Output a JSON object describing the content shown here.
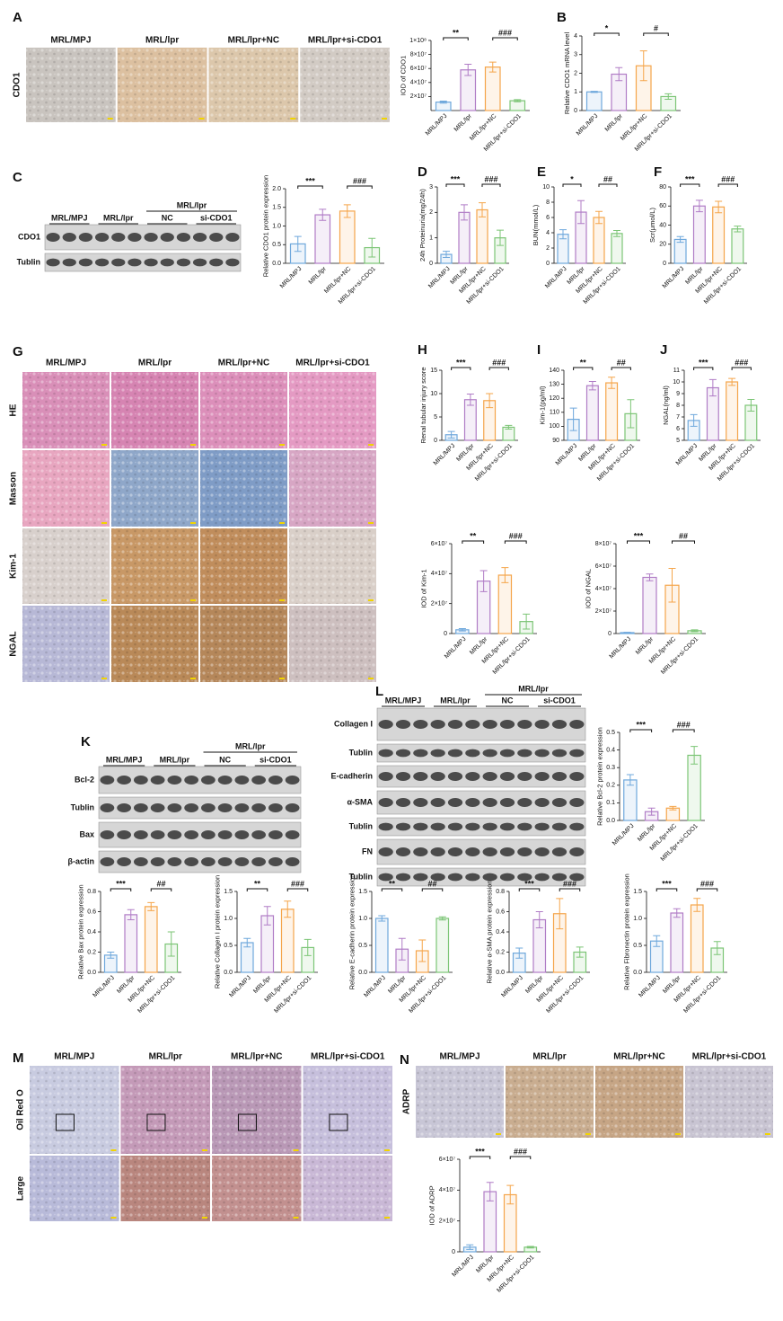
{
  "panel_letters": [
    "A",
    "B",
    "C",
    "D",
    "E",
    "F",
    "G",
    "H",
    "I",
    "J",
    "K",
    "L",
    "M",
    "N"
  ],
  "image_panels": [
    {
      "columns": [
        "MRL/MPJ",
        "MRL/lpr",
        "MRL/lpr+NC",
        "MRL/lpr+si-CDO1"
      ],
      "rows": [
        "CDO1"
      ]
    },
    {
      "columns": [
        "MRL/MPJ",
        "MRL/lpr",
        "MRL/lpr+NC",
        "MRL/lpr+si-CDO1"
      ],
      "rows": [
        "HE",
        "Masson",
        "Kim-1",
        "NGAL"
      ]
    },
    {
      "columns": [
        "MRL/MPJ",
        "MRL/lpr",
        "MRL/lpr+NC",
        "MRL/lpr+si-CDO1"
      ],
      "rows": [
        "Oil Red O",
        "Large"
      ]
    },
    {
      "columns": [
        "MRL/MPJ",
        "MRL/lpr",
        "MRL/lpr+NC",
        "MRL/lpr+si-CDO1"
      ],
      "rows": [
        "ADRP"
      ]
    }
  ],
  "western_blots": [
    {
      "group_header": "MRL/lpr",
      "groups": [
        "MRL/MPJ",
        "MRL/lpr",
        "NC",
        "si-CDO1"
      ],
      "rows": [
        "CDO1",
        "Tublin"
      ]
    },
    {
      "group_header": "MRL/lpr",
      "groups": [
        "MRL/MPJ",
        "MRL/lpr",
        "NC",
        "si-CDO1"
      ],
      "rows": [
        "Bcl-2",
        "Tublin",
        "Bax",
        "β-actin"
      ]
    },
    {
      "group_header": "MRL/lpr",
      "groups": [
        "MRL/MPJ",
        "MRL/lpr",
        "NC",
        "si-CDO1"
      ],
      "rows": [
        "Collagen I",
        "Tublin",
        "E-cadherin",
        "α-SMA",
        "Tublin",
        "FN",
        "Tublin"
      ]
    }
  ],
  "chart_data": [
    {
      "type": "bar",
      "y_label": "IOD of CDO1",
      "categories": [
        "MRL/MPJ",
        "MRL/lpr",
        "MRL/lpr+NC",
        "MRL/lpr+si-CDO1"
      ],
      "colors": [
        "#6fa8dc",
        "#b07cc6",
        "#f5a54a",
        "#7cc576"
      ],
      "values": [
        12000000,
        58000000,
        62000000,
        14000000
      ],
      "errors": [
        1500000,
        8000000,
        7000000,
        1500000
      ],
      "ylim": [
        0,
        100000000
      ],
      "yticks": [
        {
          "value": 20000000,
          "label": "2×10⁷"
        },
        {
          "value": 40000000,
          "label": "4×10⁷"
        },
        {
          "value": 60000000,
          "label": "6×10⁷"
        },
        {
          "value": 80000000,
          "label": "8×10⁷"
        },
        {
          "value": 100000000,
          "label": "1×10⁸"
        }
      ],
      "sig_labels": [
        "**",
        "###"
      ]
    },
    {
      "type": "bar",
      "y_label": "Relative CDO1 mRNA level",
      "categories": [
        "MRL/MPJ",
        "MRL/lpr",
        "MRL/lpr+NC",
        "MRL/lpr+si-CDO1"
      ],
      "colors": [
        "#6fa8dc",
        "#b07cc6",
        "#f5a54a",
        "#7cc576"
      ],
      "values": [
        1.0,
        1.95,
        2.4,
        0.75
      ],
      "errors": [
        0.03,
        0.35,
        0.8,
        0.15
      ],
      "ylim": [
        0,
        4
      ],
      "yticks": [
        0,
        1,
        2,
        3,
        4
      ],
      "sig_labels": [
        "*",
        "#"
      ]
    },
    {
      "type": "bar",
      "y_label": "Relative CDO1 protein expression",
      "categories": [
        "MRL/MPJ",
        "MRL/lpr",
        "MRL/lpr+NC",
        "MRL/lpr+si-CDO1"
      ],
      "colors": [
        "#6fa8dc",
        "#b07cc6",
        "#f5a54a",
        "#7cc576"
      ],
      "values": [
        0.52,
        1.3,
        1.4,
        0.42
      ],
      "errors": [
        0.2,
        0.15,
        0.17,
        0.25
      ],
      "ylim": [
        0,
        2
      ],
      "yticks": [
        {
          "value": 0,
          "label": "0.0"
        },
        0.5,
        {
          "value": 1,
          "label": "1.0"
        },
        1.5,
        {
          "value": 2,
          "label": "2.0"
        }
      ],
      "sig_labels": [
        "***",
        "###"
      ]
    },
    {
      "type": "bar",
      "y_label": "24h Proteinuria(mg/24h)",
      "categories": [
        "MRL/MPJ",
        "MRL/lpr",
        "MRL/lpr+NC",
        "MRL/lpr+si-CDO1"
      ],
      "colors": [
        "#6fa8dc",
        "#b07cc6",
        "#f5a54a",
        "#7cc576"
      ],
      "values": [
        0.35,
        2.0,
        2.1,
        1.0
      ],
      "errors": [
        0.12,
        0.3,
        0.28,
        0.3
      ],
      "ylim": [
        0,
        3
      ],
      "yticks": [
        0,
        1,
        2,
        3
      ],
      "sig_labels": [
        "***",
        "###"
      ]
    },
    {
      "type": "bar",
      "y_label": "BUN(mmol/L)",
      "categories": [
        "MRL/MPJ",
        "MRL/lpr",
        "MRL/lpr+NC",
        "MRL/lpr+si-CDO1"
      ],
      "colors": [
        "#6fa8dc",
        "#b07cc6",
        "#f5a54a",
        "#7cc576"
      ],
      "values": [
        3.8,
        6.7,
        6.0,
        3.9
      ],
      "errors": [
        0.6,
        1.5,
        0.8,
        0.4
      ],
      "ylim": [
        0,
        10
      ],
      "yticks": [
        0,
        2,
        4,
        6,
        8,
        10
      ],
      "sig_labels": [
        "*",
        "##"
      ]
    },
    {
      "type": "bar",
      "y_label": "Scr(μmol/L)",
      "categories": [
        "MRL/MPJ",
        "MRL/lpr",
        "MRL/lpr+NC",
        "MRL/lpr+si-CDO1"
      ],
      "colors": [
        "#6fa8dc",
        "#b07cc6",
        "#f5a54a",
        "#7cc576"
      ],
      "values": [
        25,
        60,
        59,
        36
      ],
      "errors": [
        3,
        6,
        6,
        3
      ],
      "ylim": [
        0,
        80
      ],
      "yticks": [
        0,
        20,
        40,
        60,
        80
      ],
      "sig_labels": [
        "***",
        "###"
      ]
    },
    {
      "type": "bar",
      "y_label": "Renal tubular injury score",
      "categories": [
        "MRL/MPJ",
        "MRL/lpr",
        "MRL/lpr+NC",
        "MRL/lpr+si-CDO1"
      ],
      "colors": [
        "#6fa8dc",
        "#b07cc6",
        "#f5a54a",
        "#7cc576"
      ],
      "values": [
        1.2,
        8.7,
        8.5,
        2.8
      ],
      "errors": [
        0.7,
        1.2,
        1.5,
        0.4
      ],
      "ylim": [
        0,
        15
      ],
      "yticks": [
        0,
        5,
        10,
        15
      ],
      "sig_labels": [
        "***",
        "###"
      ]
    },
    {
      "type": "bar",
      "y_label": "Kim-1(pg/ml)",
      "categories": [
        "MRL/MPJ",
        "MRL/lpr",
        "MRL/lpr+NC",
        "MRL/lpr+si-CDO1"
      ],
      "colors": [
        "#6fa8dc",
        "#b07cc6",
        "#f5a54a",
        "#7cc576"
      ],
      "values": [
        105,
        129,
        131,
        109
      ],
      "errors": [
        8,
        3,
        4,
        10
      ],
      "ylim": [
        90,
        140
      ],
      "yticks": [
        90,
        100,
        110,
        120,
        130,
        140
      ],
      "sig_labels": [
        "**",
        "##"
      ]
    },
    {
      "type": "bar",
      "y_label": "NGAL(ng/ml)",
      "categories": [
        "MRL/MPJ",
        "MRL/lpr",
        "MRL/lpr+NC",
        "MRL/lpr+si-CDO1"
      ],
      "colors": [
        "#6fa8dc",
        "#b07cc6",
        "#f5a54a",
        "#7cc576"
      ],
      "values": [
        6.7,
        9.5,
        10.0,
        8.0
      ],
      "errors": [
        0.5,
        0.7,
        0.3,
        0.5
      ],
      "ylim": [
        5,
        11
      ],
      "yticks": [
        5,
        6,
        7,
        8,
        9,
        10,
        11
      ],
      "sig_labels": [
        "***",
        "###"
      ]
    },
    {
      "type": "bar",
      "y_label": "IOD of Kim-1",
      "categories": [
        "MRL/MPJ",
        "MRL/lpr",
        "MRL/lpr+NC",
        "MRL/lpr+si-CDO1"
      ],
      "colors": [
        "#6fa8dc",
        "#b07cc6",
        "#f5a54a",
        "#7cc576"
      ],
      "values": [
        2500000,
        35000000,
        39000000,
        8000000
      ],
      "errors": [
        800000,
        7000000,
        5000000,
        5000000
      ],
      "ylim": [
        0,
        60000000
      ],
      "yticks": [
        0,
        {
          "value": 20000000,
          "label": "2×10⁷"
        },
        {
          "value": 40000000,
          "label": "4×10⁷"
        },
        {
          "value": 60000000,
          "label": "6×10⁷"
        }
      ],
      "sig_labels": [
        "**",
        "###"
      ]
    },
    {
      "type": "bar",
      "y_label": "IOD of NGAL",
      "categories": [
        "MRL/MPJ",
        "MRL/lpr",
        "MRL/lpr+NC",
        "MRL/lpr+si-CDO1"
      ],
      "colors": [
        "#6fa8dc",
        "#b07cc6",
        "#f5a54a",
        "#7cc576"
      ],
      "values": [
        800000,
        50000000,
        43000000,
        2500000
      ],
      "errors": [
        300000,
        3000000,
        15000000,
        800000
      ],
      "ylim": [
        0,
        80000000
      ],
      "yticks": [
        0,
        {
          "value": 20000000,
          "label": "2×10⁷"
        },
        {
          "value": 40000000,
          "label": "4×10⁷"
        },
        {
          "value": 60000000,
          "label": "6×10⁷"
        },
        {
          "value": 80000000,
          "label": "8×10⁷"
        }
      ],
      "sig_labels": [
        "***",
        "##"
      ]
    },
    {
      "type": "bar",
      "y_label": "Relative Bcl-2 protein expression",
      "categories": [
        "MRL/MPJ",
        "MRL/lpr",
        "MRL/lpr+NC",
        "MRL/lpr+si-CDO1"
      ],
      "colors": [
        "#6fa8dc",
        "#b07cc6",
        "#f5a54a",
        "#7cc576"
      ],
      "values": [
        0.23,
        0.05,
        0.07,
        0.37
      ],
      "errors": [
        0.03,
        0.02,
        0.01,
        0.05
      ],
      "ylim": [
        0,
        0.5
      ],
      "yticks": [
        {
          "value": 0,
          "label": "0.0"
        },
        0.1,
        0.2,
        0.3,
        0.4,
        0.5
      ],
      "sig_labels": [
        "***",
        "###"
      ]
    },
    {
      "type": "bar",
      "y_label": "Relative Bax protein expression",
      "categories": [
        "MRL/MPJ",
        "MRL/lpr",
        "MRL/lpr+NC",
        "MRL/lpr+si-CDO1"
      ],
      "colors": [
        "#6fa8dc",
        "#b07cc6",
        "#f5a54a",
        "#7cc576"
      ],
      "values": [
        0.17,
        0.57,
        0.65,
        0.28
      ],
      "errors": [
        0.03,
        0.05,
        0.04,
        0.12
      ],
      "ylim": [
        0,
        0.8
      ],
      "yticks": [
        {
          "value": 0,
          "label": "0.0"
        },
        0.2,
        0.4,
        0.6,
        0.8
      ],
      "sig_labels": [
        "***",
        "##"
      ]
    },
    {
      "type": "bar",
      "y_label": "Relative Collagen I protein expression",
      "categories": [
        "MRL/MPJ",
        "MRL/lpr",
        "MRL/lpr+NC",
        "MRL/lpr+si-CDO1"
      ],
      "colors": [
        "#6fa8dc",
        "#b07cc6",
        "#f5a54a",
        "#7cc576"
      ],
      "values": [
        0.55,
        1.05,
        1.17,
        0.46
      ],
      "errors": [
        0.08,
        0.17,
        0.15,
        0.15
      ],
      "ylim": [
        0,
        1.5
      ],
      "yticks": [
        {
          "value": 0,
          "label": "0.0"
        },
        0.5,
        {
          "value": 1,
          "label": "1.0"
        },
        1.5
      ],
      "sig_labels": [
        "**",
        "###"
      ]
    },
    {
      "type": "bar",
      "y_label": "Relative E-cadherin protein expression",
      "categories": [
        "MRL/MPJ",
        "MRL/lpr",
        "MRL/lpr+NC",
        "MRL/lpr+si-CDO1"
      ],
      "colors": [
        "#6fa8dc",
        "#b07cc6",
        "#f5a54a",
        "#7cc576"
      ],
      "values": [
        1.0,
        0.43,
        0.4,
        1.0
      ],
      "errors": [
        0.05,
        0.2,
        0.2,
        0.03
      ],
      "ylim": [
        0,
        1.5
      ],
      "yticks": [
        {
          "value": 0,
          "label": "0.0"
        },
        0.5,
        {
          "value": 1,
          "label": "1.0"
        },
        1.5
      ],
      "sig_labels": [
        "**",
        "##"
      ]
    },
    {
      "type": "bar",
      "y_label": "Relative α-SMA protein expression",
      "categories": [
        "MRL/MPJ",
        "MRL/lpr",
        "MRL/lpr+NC",
        "MRL/lpr+si-CDO1"
      ],
      "colors": [
        "#6fa8dc",
        "#b07cc6",
        "#f5a54a",
        "#7cc576"
      ],
      "values": [
        0.19,
        0.52,
        0.58,
        0.2
      ],
      "errors": [
        0.05,
        0.08,
        0.15,
        0.05
      ],
      "ylim": [
        0,
        0.8
      ],
      "yticks": [
        {
          "value": 0,
          "label": "0.0"
        },
        0.2,
        0.4,
        0.6,
        0.8
      ],
      "sig_labels": [
        "***",
        "###"
      ]
    },
    {
      "type": "bar",
      "y_label": "Relative Fibronectin protein expression",
      "categories": [
        "MRL/MPJ",
        "MRL/lpr",
        "MRL/lpr+NC",
        "MRL/lpr+si-CDO1"
      ],
      "colors": [
        "#6fa8dc",
        "#b07cc6",
        "#f5a54a",
        "#7cc576"
      ],
      "values": [
        0.58,
        1.1,
        1.25,
        0.45
      ],
      "errors": [
        0.1,
        0.08,
        0.12,
        0.12
      ],
      "ylim": [
        0,
        1.5
      ],
      "yticks": [
        {
          "value": 0,
          "label": "0.0"
        },
        0.5,
        {
          "value": 1,
          "label": "1.0"
        },
        1.5
      ],
      "sig_labels": [
        "***",
        "###"
      ]
    },
    {
      "type": "bar",
      "y_label": "IOD of ADRP",
      "categories": [
        "MRL/MPJ",
        "MRL/lpr",
        "MRL/lpr+NC",
        "MRL/lpr+si-CDO1"
      ],
      "colors": [
        "#6fa8dc",
        "#b07cc6",
        "#f5a54a",
        "#7cc576"
      ],
      "values": [
        3000000,
        39000000,
        37000000,
        3000000
      ],
      "errors": [
        1500000,
        6000000,
        6000000,
        500000
      ],
      "ylim": [
        0,
        60000000
      ],
      "yticks": [
        0,
        {
          "value": 20000000,
          "label": "2×10⁷"
        },
        {
          "value": 40000000,
          "label": "4×10⁷"
        },
        {
          "value": 60000000,
          "label": "6×10⁷"
        }
      ],
      "sig_labels": [
        "***",
        "###"
      ]
    }
  ]
}
